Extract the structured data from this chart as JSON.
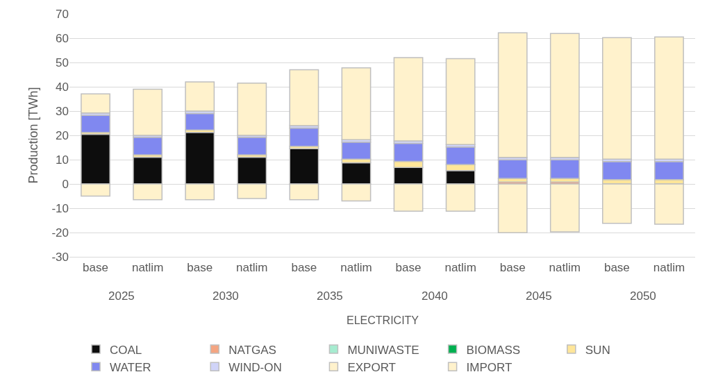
{
  "chart_data": {
    "type": "bar",
    "stacked": true,
    "ylabel": "Production [TWh]",
    "xlabel": "ELECTRICITY",
    "categories": [
      "base",
      "natlim",
      "base",
      "natlim",
      "base",
      "natlim",
      "base",
      "natlim",
      "base",
      "natlim",
      "base",
      "natlim"
    ],
    "annotations": [
      "2025",
      "2030",
      "2035",
      "2040",
      "2045",
      "2050"
    ],
    "series": [
      {
        "name": "COAL",
        "color": "#0d0d0d",
        "values": [
          20.4,
          11.0,
          21.2,
          11.0,
          14.5,
          8.7,
          6.8,
          5.5,
          null,
          null,
          null,
          null
        ]
      },
      {
        "name": "NATGAS",
        "color": "#f4a582",
        "values": [
          null,
          null,
          null,
          null,
          null,
          null,
          null,
          null,
          0.8,
          0.8,
          null,
          null
        ]
      },
      {
        "name": "MUNIWASTE",
        "color": "#a6ecd0",
        "values": [
          null,
          null,
          null,
          null,
          null,
          null,
          null,
          null,
          null,
          null,
          null,
          null
        ]
      },
      {
        "name": "BIOMASS",
        "color": "#00b050",
        "values": [
          null,
          null,
          null,
          null,
          null,
          null,
          null,
          null,
          null,
          null,
          null,
          null
        ]
      },
      {
        "name": "SUN",
        "color": "#ffe699",
        "values": [
          0.8,
          1.0,
          1.0,
          1.0,
          1.0,
          1.5,
          2.5,
          2.5,
          1.5,
          1.5,
          1.8,
          1.8
        ]
      },
      {
        "name": "WATER",
        "color": "#8088f0",
        "values": [
          7.0,
          7.2,
          6.8,
          7.2,
          7.5,
          7.0,
          7.4,
          7.2,
          7.6,
          7.6,
          7.4,
          7.4
        ]
      },
      {
        "name": "WIND-ON",
        "color": "#d0d4f8",
        "values": [
          1.0,
          0.8,
          1.0,
          0.8,
          1.0,
          1.0,
          1.0,
          1.0,
          1.0,
          1.0,
          1.0,
          1.0
        ]
      },
      {
        "name": "EXPORT",
        "color": "#fff2cc",
        "values": [
          -5,
          -6.5,
          -6.5,
          -6,
          -6.5,
          -7,
          -11.2,
          -11.2,
          -20.1,
          -19.7,
          -16.2,
          -16.6
        ]
      },
      {
        "name": "IMPORT",
        "color": "#fff2cc",
        "values": [
          7.9,
          19.0,
          12.0,
          21.5,
          23.0,
          29.6,
          34.3,
          35.4,
          51.3,
          51.0,
          50.0,
          50.3
        ]
      }
    ],
    "ylim": [
      -30,
      70
    ],
    "yticks": [
      -30,
      -20,
      -10,
      0,
      10,
      20,
      30,
      40,
      50,
      60,
      70
    ],
    "grid": "y",
    "legend": "bottom"
  }
}
